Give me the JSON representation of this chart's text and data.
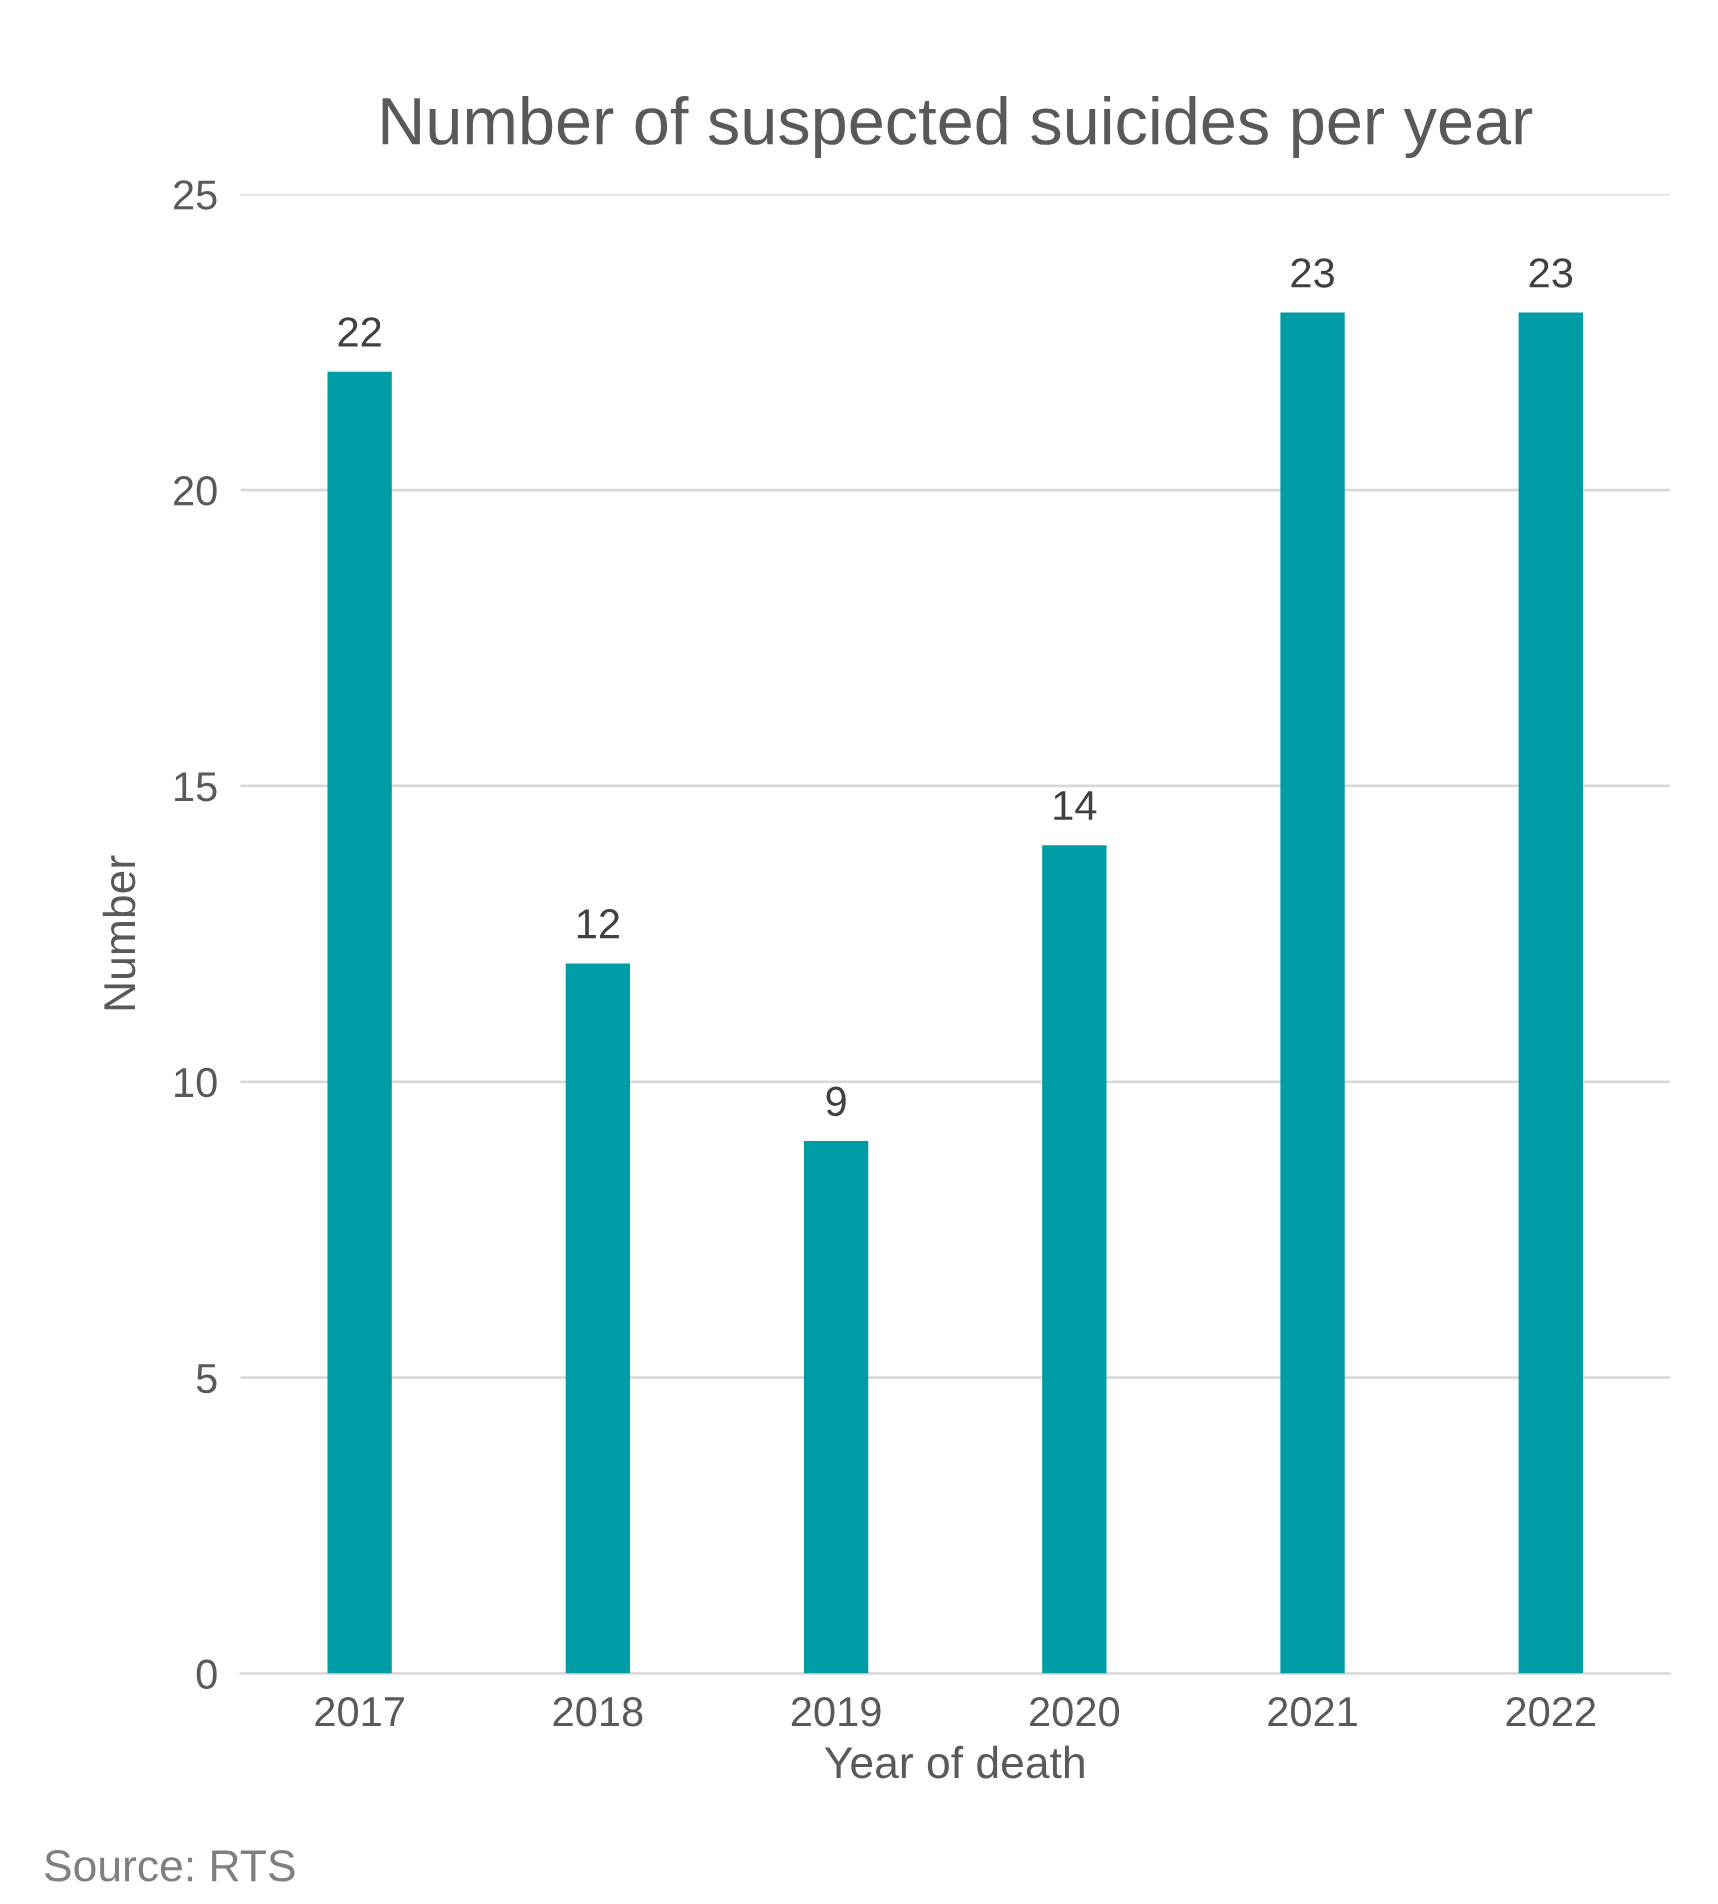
{
  "chart_data": {
    "type": "bar",
    "title": "Number of suspected suicides per year",
    "xlabel": "Year of death",
    "ylabel": "Number",
    "categories": [
      "2017",
      "2018",
      "2019",
      "2020",
      "2021",
      "2022"
    ],
    "values": [
      22,
      12,
      9,
      14,
      23,
      23
    ],
    "color": "#009ca6",
    "ylim": [
      0,
      25
    ],
    "yticks": [
      0,
      5,
      10,
      15,
      20,
      25
    ],
    "grid": "y",
    "data_labels": true,
    "annotations": [
      "Source: RTS"
    ]
  }
}
